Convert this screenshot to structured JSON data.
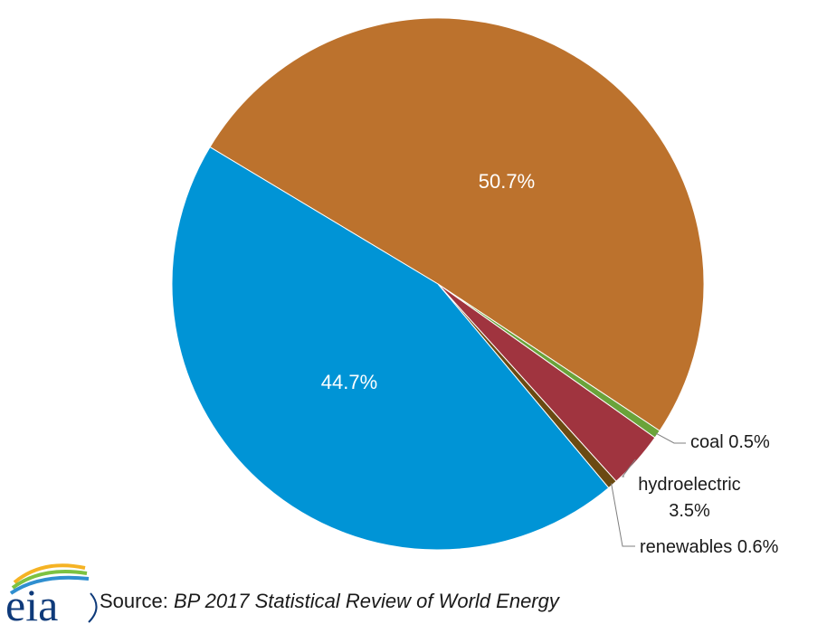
{
  "chart_data": {
    "type": "pie",
    "slices": [
      {
        "label": "",
        "value": 50.7,
        "display": "50.7%",
        "color": "#bc722d"
      },
      {
        "label": "coal",
        "value": 0.5,
        "display": "coal 0.5%",
        "color": "#6aa33a"
      },
      {
        "label": "hydroelectric",
        "value": 3.5,
        "display": "3.5%",
        "color": "#a0343f"
      },
      {
        "label": "renewables",
        "value": 0.6,
        "display": "renewables 0.6%",
        "color": "#6b4a12"
      },
      {
        "label": "",
        "value": 44.7,
        "display": "44.7%",
        "color": "#0094d6"
      }
    ],
    "hydro_label_line1": "hydroelectric"
  },
  "source": {
    "prefix": "Source: ",
    "title": "BP 2017 Statistical Review of World Energy"
  },
  "logo": {
    "text": "eia",
    "colors": [
      "#0e3a7a",
      "#2f8fd0",
      "#7cc242",
      "#f5b324"
    ]
  }
}
